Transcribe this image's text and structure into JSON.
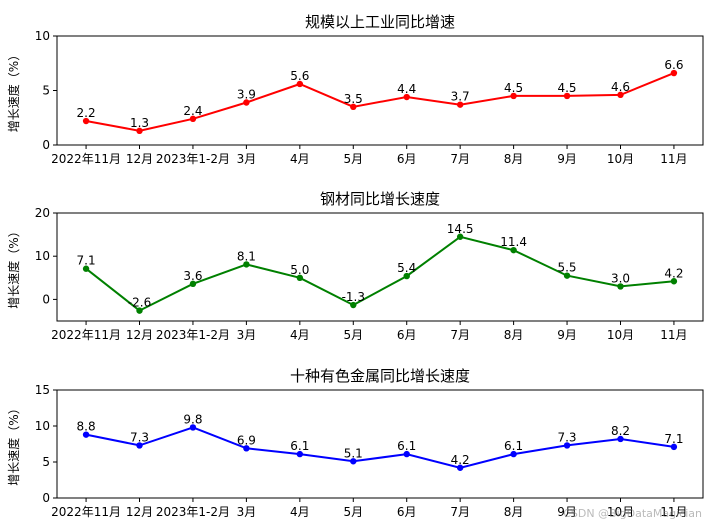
{
  "watermark": "CSDN @BigDataMagician",
  "chart_data": [
    {
      "type": "line",
      "title": "规模以上工业同比增速",
      "xlabel": "",
      "ylabel": "增长速度（%）",
      "categories": [
        "2022年11月",
        "12月",
        "2023年1-2月",
        "3月",
        "4月",
        "5月",
        "6月",
        "7月",
        "8月",
        "9月",
        "10月",
        "11月"
      ],
      "values": [
        2.2,
        1.3,
        2.4,
        3.9,
        5.6,
        3.5,
        4.4,
        3.7,
        4.5,
        4.5,
        4.6,
        6.6
      ],
      "value_labels": [
        "2.2",
        "1.3",
        "2.4",
        "3.9",
        "5.6",
        "3.5",
        "4.4",
        "3.7",
        "4.5",
        "4.5",
        "4.6",
        "6.6"
      ],
      "ylim": [
        0,
        10
      ],
      "yticks": [
        0,
        5,
        10
      ],
      "color": "#ff0000",
      "grid": false
    },
    {
      "type": "line",
      "title": "钢材同比增长速度",
      "xlabel": "",
      "ylabel": "增长速度（%）",
      "categories": [
        "2022年11月",
        "12月",
        "2023年1-2月",
        "3月",
        "4月",
        "5月",
        "6月",
        "7月",
        "8月",
        "9月",
        "10月",
        "11月"
      ],
      "values": [
        7.1,
        -2.6,
        3.6,
        8.1,
        5.0,
        -1.3,
        5.4,
        14.5,
        11.4,
        5.5,
        3.0,
        4.2
      ],
      "value_labels": [
        "7.1",
        "-2.6",
        "3.6",
        "8.1",
        "5.0",
        "-1.3",
        "5.4",
        "14.5",
        "11.4",
        "5.5",
        "3.0",
        "4.2"
      ],
      "ylim": [
        -5,
        20
      ],
      "yticks": [
        0,
        10,
        20
      ],
      "color": "#008000",
      "grid": false
    },
    {
      "type": "line",
      "title": "十种有色金属同比增长速度",
      "xlabel": "",
      "ylabel": "增长速度（%）",
      "categories": [
        "2022年11月",
        "12月",
        "2023年1-2月",
        "3月",
        "4月",
        "5月",
        "6月",
        "7月",
        "8月",
        "9月",
        "10月",
        "11月"
      ],
      "values": [
        8.8,
        7.3,
        9.8,
        6.9,
        6.1,
        5.1,
        6.1,
        4.2,
        6.1,
        7.3,
        8.2,
        7.1
      ],
      "value_labels": [
        "8.8",
        "7.3",
        "9.8",
        "6.9",
        "6.1",
        "5.1",
        "6.1",
        "4.2",
        "6.1",
        "7.3",
        "8.2",
        "7.1"
      ],
      "ylim": [
        0,
        15
      ],
      "yticks": [
        0,
        5,
        10,
        15
      ],
      "color": "#0000ff",
      "grid": false
    }
  ]
}
